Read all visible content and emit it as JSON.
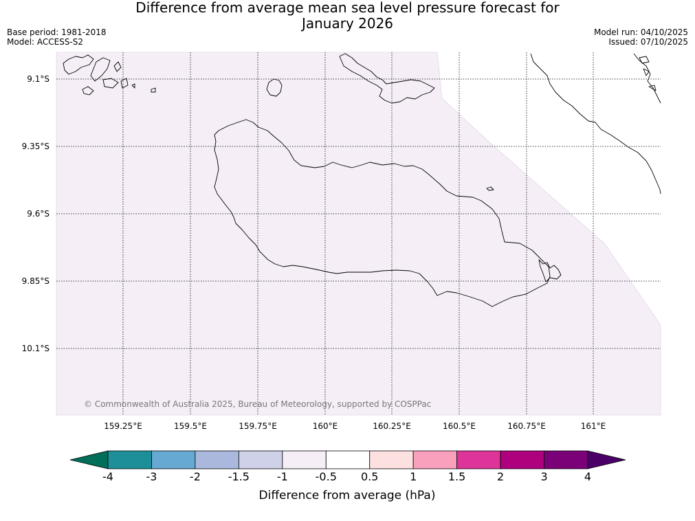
{
  "header": {
    "title_line1": "Difference from average mean sea level pressure forecast for",
    "title_line2": "January 2026",
    "base_period": "Base period: 1981-2018",
    "model": "Model: ACCESS-S2",
    "model_run": "Model run: 04/10/2025",
    "issued": "Issued: 07/10/2025"
  },
  "map": {
    "lat_labels": [
      "9.1°S",
      "9.35°S",
      "9.6°S",
      "9.85°S",
      "10.1°S"
    ],
    "lon_labels": [
      "159.25°E",
      "159.5°E",
      "159.75°E",
      "160°E",
      "160.25°E",
      "160.5°E",
      "160.75°E",
      "161°E"
    ],
    "copyright": "© Commonwealth of Australia 2025, Bureau of Meteorology, supported by COSPPac",
    "field_color": "#f5eef7",
    "gridline_style": "dotted",
    "coastline_color": "#000000"
  },
  "colorbar": {
    "label": "Difference from average (hPa)",
    "ticks": [
      "-4",
      "-3",
      "-2",
      "-1.5",
      "-1",
      "-0.5",
      "0.5",
      "1",
      "1.5",
      "2",
      "3",
      "4"
    ],
    "low_extend_color": "#006e58",
    "high_extend_color": "#4a0068",
    "colors": [
      "#1c8f98",
      "#66a9d3",
      "#a9b8dc",
      "#cfd1e8",
      "#f5eef7",
      "#ffffff",
      "#fde0e0",
      "#f9a0bd",
      "#dc3499",
      "#ad017e",
      "#7a0177"
    ]
  }
}
